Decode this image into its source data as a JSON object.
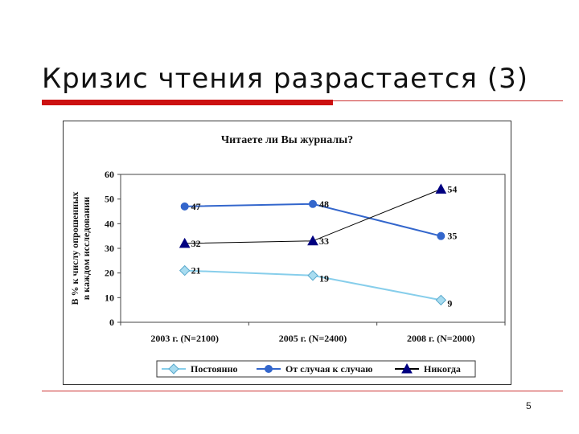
{
  "slide": {
    "title": "Кризис чтения разрастается (3)",
    "page_number": "5"
  },
  "colors": {
    "accent_bar": "#cc1111",
    "rule": "#cc3333",
    "series_postoyanno": "#87ceeb",
    "series_sluchay": "#3366cc",
    "series_nikogda": "#000080"
  },
  "chart_data": {
    "type": "line",
    "title": "Читаете ли Вы журналы?",
    "ylabel_line1": "В % к числу опрошенных",
    "ylabel_line2": "в каждом исследовании",
    "xlabel": "",
    "categories": [
      "2003 г. (N=2100)",
      "2005 г. (N=2400)",
      "2008 г. (N=2000)"
    ],
    "ylim": [
      0,
      60
    ],
    "yticks": [
      0,
      10,
      20,
      30,
      40,
      50,
      60
    ],
    "grid": false,
    "legend_position": "bottom",
    "series": [
      {
        "name": "Постоянно",
        "values": [
          21,
          19,
          9
        ],
        "marker": "diamond",
        "color": "#87ceeb",
        "marker_fill": "#a8dcf0"
      },
      {
        "name": "От случая к случаю",
        "values": [
          47,
          48,
          35
        ],
        "marker": "circle",
        "color": "#3366cc",
        "marker_fill": "#3366cc"
      },
      {
        "name": "Никогда",
        "values": [
          32,
          33,
          54
        ],
        "marker": "triangle",
        "color": "#000000",
        "marker_fill": "#000080"
      }
    ]
  }
}
